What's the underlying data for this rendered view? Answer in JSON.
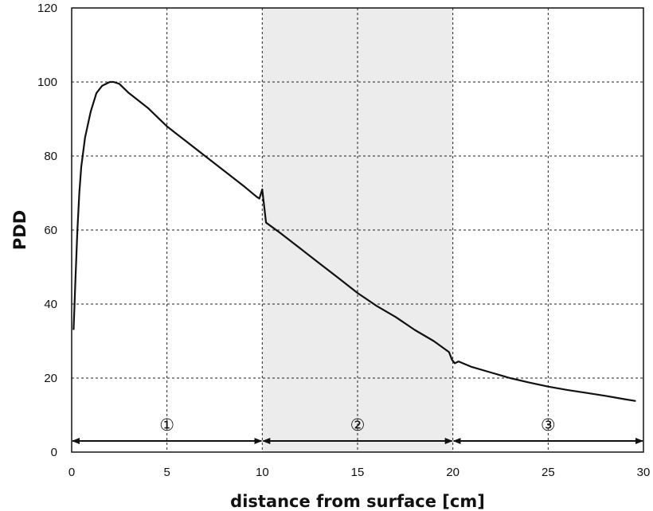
{
  "chart_data": {
    "type": "line",
    "title": "",
    "xlabel": "distance from surface [cm]",
    "ylabel": "PDD",
    "xlim": [
      0,
      30
    ],
    "ylim": [
      0,
      120
    ],
    "x_ticks": [
      "0",
      "5",
      "10",
      "15",
      "20",
      "25",
      "30"
    ],
    "y_ticks": [
      "0",
      "20",
      "40",
      "60",
      "80",
      "100",
      "120"
    ],
    "grid": true,
    "shaded_region": {
      "x": [
        10,
        20
      ],
      "color": "#ececec"
    },
    "regions": [
      {
        "label": "①",
        "x": [
          0,
          10
        ]
      },
      {
        "label": "②",
        "x": [
          10,
          20
        ]
      },
      {
        "label": "③",
        "x": [
          20,
          30
        ]
      }
    ],
    "arrow_y": 3,
    "line_color": "#111111",
    "series": [
      {
        "x": [
          0.1,
          0.2,
          0.3,
          0.4,
          0.5,
          0.7,
          1.0,
          1.3,
          1.6,
          2.0,
          2.2,
          2.5,
          3.0,
          3.5,
          4.0,
          4.5,
          5.0,
          5.5,
          6.0,
          7.0,
          8.0,
          9.0,
          9.7,
          9.85,
          10.0,
          10.2,
          11.0,
          12.0,
          13.0,
          14.0,
          15.0,
          16.0,
          17.0,
          18.0,
          19.0,
          19.8,
          19.95,
          20.1,
          20.3,
          21.0,
          22.0,
          23.0,
          24.0,
          25.0,
          26.0,
          27.0,
          28.0,
          29.0,
          29.6
        ],
        "y": [
          33,
          47,
          60,
          70,
          77,
          85,
          92,
          97,
          99,
          100,
          100,
          99.5,
          97,
          95,
          93,
          90.5,
          88,
          86,
          84,
          80,
          76,
          72,
          69,
          68.5,
          71,
          62,
          59,
          55,
          51,
          47,
          43,
          39.5,
          36.5,
          33,
          30,
          27,
          25,
          24,
          24.5,
          23,
          21.5,
          20,
          18.8,
          17.7,
          16.8,
          16,
          15.2,
          14.3,
          13.8
        ]
      }
    ]
  }
}
